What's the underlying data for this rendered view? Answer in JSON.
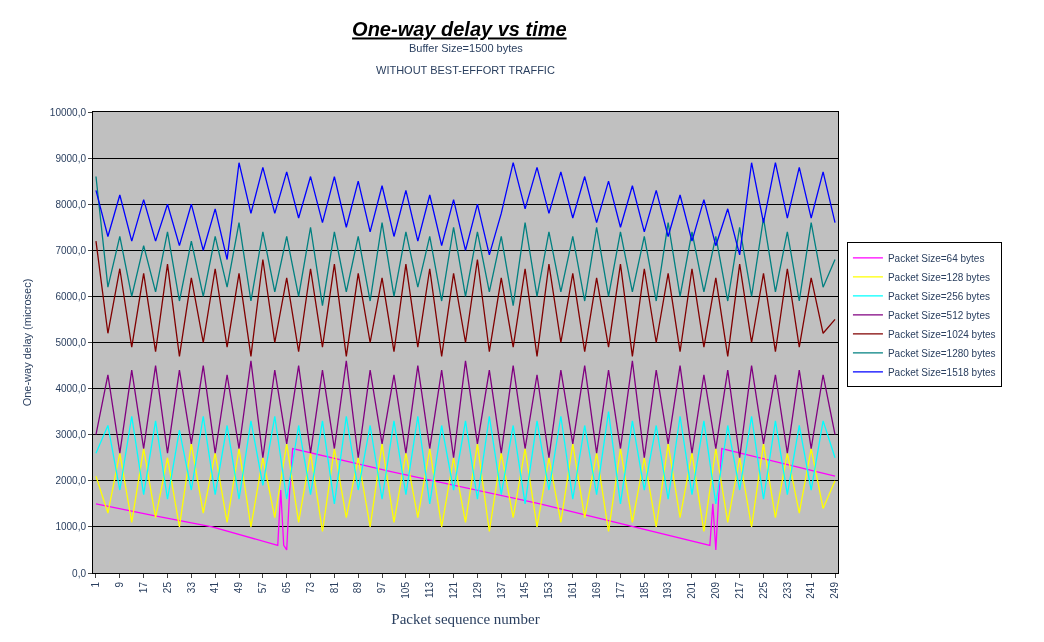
{
  "chart_data": {
    "type": "line",
    "title": "One-way delay vs time",
    "subtitle": "Buffer Size=1500 bytes",
    "annotations": [
      "WITHOUT BEST-EFFORT TRAFFIC"
    ],
    "xlabel": "Packet sequence number",
    "ylabel": "One-way delay (microsec)",
    "x": [
      1,
      5,
      9,
      13,
      17,
      21,
      25,
      29,
      33,
      37,
      41,
      45,
      49,
      53,
      57,
      61,
      65,
      69,
      73,
      77,
      81,
      85,
      89,
      93,
      97,
      101,
      105,
      109,
      113,
      117,
      121,
      125,
      129,
      133,
      137,
      141,
      145,
      149,
      153,
      157,
      161,
      165,
      169,
      173,
      177,
      181,
      185,
      189,
      193,
      197,
      201,
      205,
      209,
      213,
      217,
      221,
      225,
      229,
      233,
      237,
      241,
      245,
      249
    ],
    "series": [
      {
        "name": "Packet Size=64 bytes",
        "color": "#ff00ff",
        "x": [
          1,
          20,
          40,
          62,
          63,
          64,
          65,
          66,
          67,
          100,
          150,
          207,
          208,
          209,
          210,
          211,
          230,
          249
        ],
        "values": [
          1500,
          1250,
          1000,
          600,
          1800,
          600,
          500,
          1800,
          2700,
          2200,
          1500,
          600,
          1500,
          500,
          1700,
          2700,
          2400,
          2100
        ]
      },
      {
        "name": "Packet Size=128 bytes",
        "color": "#ffff00",
        "values": [
          2100,
          1300,
          2600,
          1100,
          2700,
          1200,
          2500,
          1000,
          2800,
          1300,
          2600,
          1100,
          2700,
          1000,
          2500,
          1200,
          2800,
          1100,
          2600,
          900,
          2700,
          1200,
          2500,
          1000,
          2800,
          1100,
          2600,
          1200,
          2700,
          1000,
          2500,
          1100,
          2800,
          900,
          2600,
          1200,
          2700,
          1000,
          2500,
          1100,
          2800,
          1200,
          2600,
          900,
          2700,
          1100,
          2500,
          1000,
          2800,
          1200,
          2600,
          900,
          2700,
          1100,
          2500,
          1000,
          2800,
          1200,
          2600,
          1300,
          2700,
          1400,
          2000
        ]
      },
      {
        "name": "Packet Size=256 bytes",
        "color": "#00ffff",
        "values": [
          2600,
          3200,
          1800,
          3400,
          1700,
          3300,
          1600,
          3100,
          1800,
          3400,
          1700,
          3200,
          1600,
          3300,
          1900,
          3400,
          1600,
          3200,
          1700,
          3300,
          1500,
          3400,
          1800,
          3200,
          1600,
          3300,
          1700,
          3400,
          1500,
          3200,
          1800,
          3300,
          1600,
          3400,
          1700,
          3200,
          1500,
          3300,
          1800,
          3400,
          1600,
          3200,
          1700,
          3500,
          1500,
          3300,
          1800,
          3200,
          1600,
          3400,
          1700,
          3300,
          1500,
          3200,
          1800,
          3400,
          1600,
          3300,
          1700,
          3200,
          1800,
          3300,
          2500
        ]
      },
      {
        "name": "Packet Size=512 bytes",
        "color": "#800080",
        "values": [
          3000,
          4300,
          2600,
          4400,
          2700,
          4500,
          2600,
          4400,
          2800,
          4500,
          2600,
          4300,
          2700,
          4600,
          2500,
          4400,
          2800,
          4500,
          2600,
          4400,
          2700,
          4600,
          2500,
          4400,
          2800,
          4300,
          2600,
          4500,
          2700,
          4400,
          2500,
          4600,
          2800,
          4400,
          2600,
          4500,
          2700,
          4300,
          2500,
          4400,
          2800,
          4500,
          2600,
          4400,
          2700,
          4600,
          2500,
          4400,
          2800,
          4500,
          2600,
          4300,
          2700,
          4400,
          2500,
          4500,
          2800,
          4300,
          2600,
          4400,
          2700,
          4300,
          3000
        ]
      },
      {
        "name": "Packet Size=1024 bytes",
        "color": "#800000",
        "values": [
          7200,
          5200,
          6600,
          4900,
          6500,
          4800,
          6700,
          4700,
          6400,
          5000,
          6600,
          4900,
          6500,
          4700,
          6800,
          5000,
          6400,
          4800,
          6600,
          4900,
          6700,
          4700,
          6500,
          5000,
          6400,
          4800,
          6700,
          4900,
          6600,
          4700,
          6500,
          5000,
          6800,
          4800,
          6400,
          4900,
          6600,
          4700,
          6700,
          5000,
          6500,
          4800,
          6400,
          4900,
          6700,
          4700,
          6600,
          5000,
          6500,
          4800,
          6600,
          4900,
          6400,
          4700,
          6700,
          5000,
          6500,
          4800,
          6600,
          4900,
          6400,
          5200,
          5500
        ]
      },
      {
        "name": "Packet Size=1280 bytes",
        "color": "#008080",
        "values": [
          8600,
          6200,
          7300,
          6000,
          7100,
          6100,
          7400,
          5900,
          7200,
          6000,
          7300,
          6200,
          7600,
          5900,
          7400,
          6100,
          7300,
          6000,
          7500,
          5800,
          7400,
          6100,
          7300,
          5900,
          7600,
          6000,
          7400,
          6200,
          7300,
          5900,
          7500,
          6000,
          7400,
          6100,
          7300,
          5800,
          7600,
          6000,
          7400,
          6100,
          7300,
          5900,
          7500,
          6000,
          7400,
          6100,
          7300,
          5900,
          7600,
          6000,
          7400,
          6100,
          7300,
          5900,
          7500,
          6000,
          7700,
          6100,
          7400,
          5900,
          7600,
          6200,
          6800
        ]
      },
      {
        "name": "Packet Size=1518 bytes",
        "color": "#0000ff",
        "values": [
          8300,
          7300,
          8200,
          7200,
          8100,
          7200,
          8000,
          7100,
          8000,
          7000,
          7900,
          6800,
          8900,
          7800,
          8800,
          7800,
          8700,
          7700,
          8600,
          7600,
          8600,
          7500,
          8500,
          7400,
          8400,
          7300,
          8300,
          7200,
          8200,
          7100,
          8100,
          7000,
          8000,
          6900,
          7800,
          8900,
          7900,
          8800,
          7800,
          8700,
          7700,
          8600,
          7600,
          8500,
          7500,
          8400,
          7400,
          8300,
          7300,
          8200,
          7200,
          8100,
          7100,
          7900,
          6900,
          8900,
          7600,
          8900,
          7700,
          8800,
          7700,
          8700,
          7600
        ]
      }
    ],
    "xlim": [
      0,
      250
    ],
    "xticks": [
      1,
      9,
      17,
      25,
      33,
      41,
      49,
      57,
      65,
      73,
      81,
      89,
      97,
      105,
      113,
      121,
      129,
      137,
      145,
      153,
      161,
      169,
      177,
      185,
      193,
      201,
      209,
      217,
      225,
      233,
      241,
      249
    ],
    "ylim": [
      0,
      10000
    ],
    "yticks": [
      {
        "value": 0,
        "label": "0,0"
      },
      {
        "value": 1000,
        "label": "1000,0"
      },
      {
        "value": 2000,
        "label": "2000,0"
      },
      {
        "value": 3000,
        "label": "3000,0"
      },
      {
        "value": 4000,
        "label": "4000,0"
      },
      {
        "value": 5000,
        "label": "5000,0"
      },
      {
        "value": 6000,
        "label": "6000,0"
      },
      {
        "value": 7000,
        "label": "7000,0"
      },
      {
        "value": 8000,
        "label": "8000,0"
      },
      {
        "value": 9000,
        "label": "9000,0"
      },
      {
        "value": 10000,
        "label": "10000,0"
      }
    ],
    "grid": "y",
    "legend": "right",
    "line_style": "solid"
  }
}
